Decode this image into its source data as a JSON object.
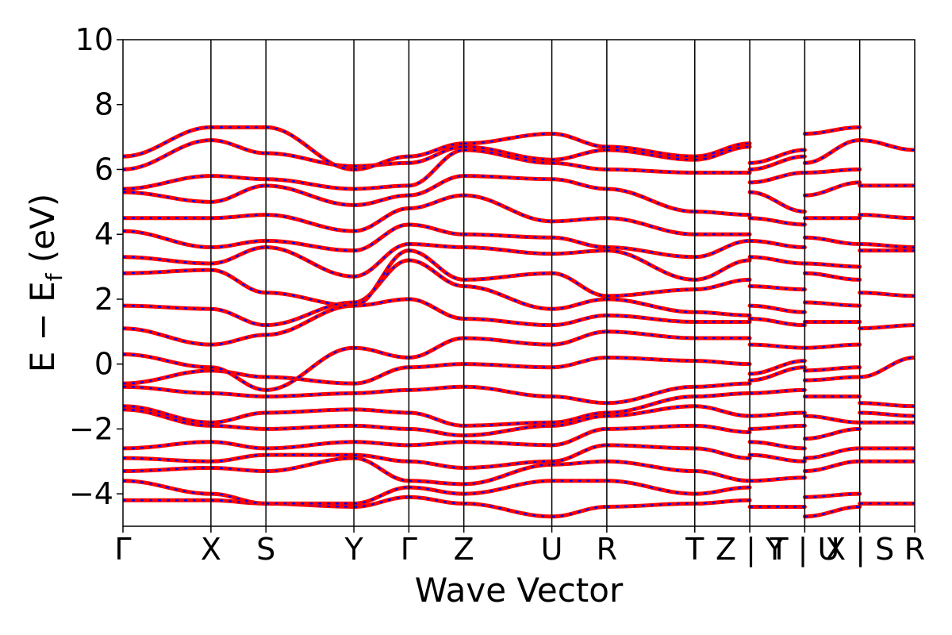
{
  "chart_data": {
    "type": "line",
    "xlabel": "Wave Vector",
    "ylabel_parts": {
      "main": "E − E",
      "sub": "f",
      "unit": " (eV)"
    },
    "ylim": [
      -5,
      10
    ],
    "yticks": [
      -4,
      -2,
      0,
      2,
      4,
      6,
      8,
      10
    ],
    "ytick_labels": [
      "−4",
      "−2",
      "0",
      "2",
      "4",
      "6",
      "8",
      "10"
    ],
    "kpoint_labels": [
      "Γ",
      "X",
      "S",
      "Y",
      "Γ",
      "Z",
      "U",
      "R",
      "T",
      "Z | Y",
      "T | U",
      "X | S",
      "R"
    ],
    "kpoint_positions": [
      0,
      1.6,
      2.6,
      4.2,
      5.2,
      6.2,
      7.8,
      8.8,
      10.4,
      11.4,
      12.4,
      13.4,
      14.4
    ],
    "grid": false,
    "band_colors": {
      "line": "#ff0000",
      "dash": "#0000ff"
    },
    "segments": [
      {
        "from": "Γ",
        "to": "X",
        "bands": [
          [
            -4.2,
            -4.2
          ],
          [
            -3.6,
            -4.0
          ],
          [
            -3.3,
            -3.2
          ],
          [
            -2.9,
            -3.0
          ],
          [
            -2.6,
            -2.4
          ],
          [
            -1.4,
            -1.9
          ],
          [
            -1.3,
            -1.8
          ],
          [
            -0.7,
            -0.9
          ],
          [
            -0.6,
            -0.2
          ],
          [
            0.3,
            -0.1
          ],
          [
            1.1,
            0.6
          ],
          [
            1.8,
            1.7
          ],
          [
            2.8,
            2.9
          ],
          [
            3.3,
            3.1
          ],
          [
            4.1,
            3.6
          ],
          [
            4.5,
            4.5
          ],
          [
            5.3,
            5.0
          ],
          [
            5.4,
            5.8
          ],
          [
            6.0,
            6.9
          ],
          [
            6.4,
            7.3
          ]
        ]
      },
      {
        "from": "X",
        "to": "S",
        "bands": [
          [
            -4.2,
            -4.3
          ],
          [
            -4.0,
            -4.3
          ],
          [
            -3.2,
            -3.3
          ],
          [
            -3.0,
            -2.8
          ],
          [
            -2.4,
            -2.6
          ],
          [
            -1.9,
            -2.0
          ],
          [
            -1.8,
            -1.5
          ],
          [
            -0.9,
            -1.0
          ],
          [
            -0.2,
            -0.4
          ],
          [
            -0.1,
            -0.8
          ],
          [
            0.6,
            0.9
          ],
          [
            1.7,
            1.2
          ],
          [
            2.9,
            2.2
          ],
          [
            3.1,
            3.6
          ],
          [
            3.6,
            3.8
          ],
          [
            4.5,
            4.6
          ],
          [
            5.0,
            5.5
          ],
          [
            5.8,
            5.7
          ],
          [
            6.9,
            6.5
          ],
          [
            7.3,
            7.3
          ]
        ]
      },
      {
        "from": "S",
        "to": "Y",
        "bands": [
          [
            -4.3,
            -4.4
          ],
          [
            -4.3,
            -4.3
          ],
          [
            -3.3,
            -2.9
          ],
          [
            -2.8,
            -2.8
          ],
          [
            -2.6,
            -2.4
          ],
          [
            -2.0,
            -1.9
          ],
          [
            -1.5,
            -1.4
          ],
          [
            -1.0,
            -0.9
          ],
          [
            -0.4,
            -0.6
          ],
          [
            -0.8,
            0.5
          ],
          [
            0.9,
            1.8
          ],
          [
            1.2,
            1.9
          ],
          [
            2.2,
            1.8
          ],
          [
            3.6,
            2.7
          ],
          [
            3.8,
            3.5
          ],
          [
            4.6,
            4.1
          ],
          [
            5.5,
            4.9
          ],
          [
            5.7,
            5.4
          ],
          [
            6.5,
            6.1
          ],
          [
            7.3,
            6.0
          ]
        ]
      },
      {
        "from": "Y",
        "to": "Γ",
        "bands": [
          [
            -4.4,
            -4.1
          ],
          [
            -4.3,
            -3.8
          ],
          [
            -2.9,
            -3.6
          ],
          [
            -2.8,
            -3.0
          ],
          [
            -2.4,
            -2.5
          ],
          [
            -1.9,
            -2.0
          ],
          [
            -1.4,
            -1.5
          ],
          [
            -0.9,
            -0.8
          ],
          [
            -0.6,
            -0.1
          ],
          [
            0.5,
            0.2
          ],
          [
            1.8,
            2.0
          ],
          [
            1.9,
            3.2
          ],
          [
            1.8,
            3.5
          ],
          [
            2.7,
            3.7
          ],
          [
            3.5,
            4.3
          ],
          [
            4.1,
            4.8
          ],
          [
            4.9,
            5.2
          ],
          [
            5.4,
            5.5
          ],
          [
            6.1,
            6.2
          ],
          [
            6.0,
            6.4
          ]
        ]
      },
      {
        "from": "Γ",
        "to": "Z",
        "bands": [
          [
            -4.1,
            -4.3
          ],
          [
            -3.8,
            -4.0
          ],
          [
            -3.6,
            -3.7
          ],
          [
            -3.0,
            -3.2
          ],
          [
            -2.5,
            -2.4
          ],
          [
            -2.0,
            -2.2
          ],
          [
            -1.5,
            -1.9
          ],
          [
            -0.8,
            -0.7
          ],
          [
            -0.1,
            0.0
          ],
          [
            0.2,
            0.8
          ],
          [
            2.0,
            1.4
          ],
          [
            3.2,
            2.4
          ],
          [
            3.5,
            2.6
          ],
          [
            3.7,
            3.6
          ],
          [
            4.3,
            4.0
          ],
          [
            4.8,
            5.2
          ],
          [
            5.2,
            5.8
          ],
          [
            5.5,
            6.6
          ],
          [
            6.2,
            6.7
          ],
          [
            6.4,
            6.8
          ]
        ]
      },
      {
        "from": "Z",
        "to": "U",
        "bands": [
          [
            -4.3,
            -4.7
          ],
          [
            -4.0,
            -3.6
          ],
          [
            -3.7,
            -3.1
          ],
          [
            -3.2,
            -3.0
          ],
          [
            -2.4,
            -2.5
          ],
          [
            -2.2,
            -1.9
          ],
          [
            -1.9,
            -1.8
          ],
          [
            -0.7,
            -1.0
          ],
          [
            0.0,
            -0.1
          ],
          [
            0.8,
            0.6
          ],
          [
            1.4,
            1.2
          ],
          [
            2.4,
            1.7
          ],
          [
            2.6,
            2.8
          ],
          [
            3.6,
            3.4
          ],
          [
            4.0,
            3.9
          ],
          [
            5.2,
            4.4
          ],
          [
            5.8,
            5.7
          ],
          [
            6.6,
            6.2
          ],
          [
            6.7,
            6.3
          ],
          [
            6.8,
            7.1
          ]
        ]
      },
      {
        "from": "U",
        "to": "R",
        "bands": [
          [
            -4.7,
            -4.4
          ],
          [
            -3.6,
            -3.6
          ],
          [
            -3.1,
            -3.0
          ],
          [
            -3.0,
            -2.5
          ],
          [
            -2.5,
            -2.0
          ],
          [
            -1.9,
            -1.6
          ],
          [
            -1.8,
            -1.5
          ],
          [
            -1.0,
            -1.2
          ],
          [
            -0.1,
            0.2
          ],
          [
            0.6,
            1.0
          ],
          [
            1.2,
            1.5
          ],
          [
            1.7,
            2.0
          ],
          [
            2.8,
            2.1
          ],
          [
            3.4,
            3.5
          ],
          [
            3.9,
            3.6
          ],
          [
            4.4,
            4.5
          ],
          [
            5.7,
            5.4
          ],
          [
            6.2,
            6.0
          ],
          [
            6.3,
            6.6
          ],
          [
            7.1,
            6.7
          ]
        ]
      },
      {
        "from": "R",
        "to": "T",
        "bands": [
          [
            -4.4,
            -4.3
          ],
          [
            -3.6,
            -4.0
          ],
          [
            -3.0,
            -3.3
          ],
          [
            -2.5,
            -2.6
          ],
          [
            -2.0,
            -1.9
          ],
          [
            -1.6,
            -1.3
          ],
          [
            -1.5,
            -1.0
          ],
          [
            -1.2,
            -0.7
          ],
          [
            0.2,
            0.1
          ],
          [
            1.0,
            0.8
          ],
          [
            1.5,
            1.3
          ],
          [
            2.0,
            1.6
          ],
          [
            2.1,
            2.3
          ],
          [
            3.5,
            2.6
          ],
          [
            3.6,
            3.3
          ],
          [
            4.5,
            4.0
          ],
          [
            5.4,
            4.7
          ],
          [
            6.0,
            5.9
          ],
          [
            6.6,
            6.3
          ],
          [
            6.7,
            6.4
          ]
        ]
      },
      {
        "from": "T",
        "to": "Z",
        "bands": [
          [
            -4.3,
            -4.2
          ],
          [
            -4.0,
            -3.8
          ],
          [
            -3.3,
            -3.6
          ],
          [
            -2.6,
            -2.9
          ],
          [
            -1.9,
            -2.1
          ],
          [
            -1.3,
            -1.6
          ],
          [
            -1.0,
            -0.9
          ],
          [
            -0.7,
            -0.6
          ],
          [
            0.1,
            0.0
          ],
          [
            0.8,
            0.8
          ],
          [
            1.3,
            1.3
          ],
          [
            1.6,
            1.5
          ],
          [
            2.3,
            2.6
          ],
          [
            2.6,
            3.2
          ],
          [
            3.3,
            3.8
          ],
          [
            4.0,
            4.0
          ],
          [
            4.7,
            4.6
          ],
          [
            5.9,
            5.9
          ],
          [
            6.3,
            6.7
          ],
          [
            6.4,
            6.8
          ]
        ]
      },
      {
        "from": "Y",
        "to": "T",
        "bands": [
          [
            -4.4,
            -4.4
          ],
          [
            -3.6,
            -3.5
          ],
          [
            -2.8,
            -3.0
          ],
          [
            -2.4,
            -2.6
          ],
          [
            -2.0,
            -1.9
          ],
          [
            -1.6,
            -1.5
          ],
          [
            -0.9,
            -0.8
          ],
          [
            -0.5,
            -0.1
          ],
          [
            -0.3,
            0.1
          ],
          [
            0.6,
            0.5
          ],
          [
            1.4,
            1.2
          ],
          [
            1.8,
            1.6
          ],
          [
            2.4,
            2.3
          ],
          [
            3.3,
            3.1
          ],
          [
            3.8,
            3.6
          ],
          [
            4.5,
            4.3
          ],
          [
            5.3,
            4.7
          ],
          [
            5.6,
            5.9
          ],
          [
            6.0,
            6.4
          ],
          [
            6.2,
            6.6
          ]
        ]
      },
      {
        "from": "U",
        "to": "X",
        "bands": [
          [
            -4.7,
            -4.4
          ],
          [
            -4.1,
            -4.0
          ],
          [
            -3.3,
            -3.0
          ],
          [
            -2.9,
            -2.6
          ],
          [
            -2.3,
            -2.0
          ],
          [
            -1.6,
            -1.8
          ],
          [
            -1.0,
            -1.0
          ],
          [
            -0.5,
            -0.4
          ],
          [
            -0.2,
            -0.1
          ],
          [
            0.5,
            0.6
          ],
          [
            1.3,
            1.3
          ],
          [
            1.9,
            1.8
          ],
          [
            2.8,
            2.6
          ],
          [
            3.1,
            3.0
          ],
          [
            3.9,
            3.7
          ],
          [
            4.5,
            4.5
          ],
          [
            5.2,
            5.6
          ],
          [
            5.9,
            6.0
          ],
          [
            6.2,
            6.9
          ],
          [
            7.1,
            7.3
          ]
        ]
      },
      {
        "from": "S",
        "to": "R",
        "bands": [
          [
            -4.3,
            -4.3
          ],
          [
            -3.0,
            -3.0
          ],
          [
            -2.6,
            -2.6
          ],
          [
            -1.8,
            -1.8
          ],
          [
            -1.5,
            -1.6
          ],
          [
            -1.2,
            -1.3
          ],
          [
            -0.4,
            0.2
          ],
          [
            1.1,
            1.2
          ],
          [
            2.2,
            2.1
          ],
          [
            3.5,
            3.5
          ],
          [
            3.7,
            3.6
          ],
          [
            4.6,
            4.5
          ],
          [
            5.5,
            5.5
          ],
          [
            6.9,
            6.6
          ]
        ]
      }
    ]
  }
}
